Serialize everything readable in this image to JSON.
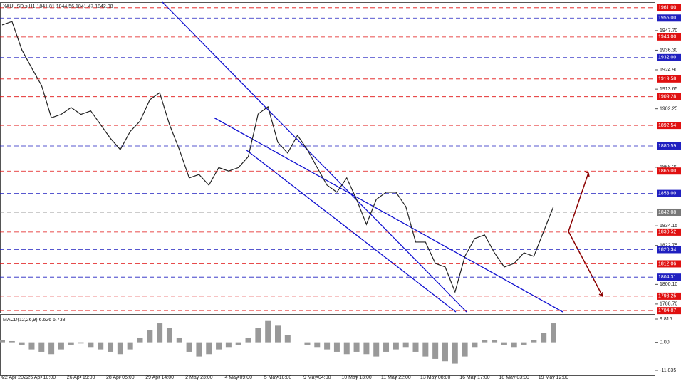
{
  "chart_data": [
    {
      "type": "line",
      "title": "XAUUSD.s,H1  1841.81 1844.56 1841.47 1842.08",
      "color": "#222222",
      "categories": [
        "22 Apr 2022",
        null,
        null,
        null,
        "25 Apr 10:00",
        null,
        null,
        null,
        "26 Apr 19:00",
        null,
        null,
        null,
        "28 Apr 05:00",
        null,
        null,
        null,
        "29 Apr 14:00",
        null,
        null,
        null,
        "2 May 23:00",
        null,
        null,
        null,
        "4 May 09:00",
        null,
        null,
        null,
        "5 May 18:00",
        null,
        null,
        null,
        "9 May 04:00",
        null,
        null,
        null,
        "10 May 13:00",
        null,
        null,
        null,
        "11 May 22:00",
        null,
        null,
        null,
        "13 May 08:00",
        null,
        null,
        null,
        "16 May 17:00",
        null,
        null,
        null,
        "18 May 03:00",
        null,
        null,
        null,
        "19 May 12:00"
      ],
      "values": [
        1951,
        1953,
        1936.5,
        1926,
        1915.8,
        1897,
        1899,
        1903,
        1899,
        1901,
        1893,
        1885,
        1878.5,
        1889,
        1895,
        1907.5,
        1911.6,
        1893,
        1878.5,
        1862,
        1864,
        1857.8,
        1868,
        1866,
        1868,
        1874.4,
        1899.2,
        1903.4,
        1882.7,
        1876.5,
        1886.8,
        1878.5,
        1868,
        1857.8,
        1853.7,
        1862,
        1849.5,
        1835,
        1849.5,
        1853.7,
        1853.7,
        1845.4,
        1824.7,
        1824.7,
        1812.3,
        1810.2,
        1795.7,
        1816.4,
        1826.8,
        1828.9,
        1818.5,
        1810.2,
        1812.3,
        1818.5,
        1816.4,
        1830.9,
        1845.4
      ],
      "ylim": [
        1784.1,
        1963.4
      ],
      "yticks": [
        {
          "value": 1947.7,
          "label": "1947.70"
        },
        {
          "value": 1936.3,
          "label": "1936.30"
        },
        {
          "value": 1924.9,
          "label": "1924.90"
        },
        {
          "value": 1913.65,
          "label": "1913.65"
        },
        {
          "value": 1902.25,
          "label": "1902.25"
        },
        {
          "value": 1868.2,
          "label": "1868.20"
        },
        {
          "value": 1834.15,
          "label": "1834.15"
        },
        {
          "value": 1822.75,
          "label": "1822.75"
        },
        {
          "value": 1800.1,
          "label": "1800.10"
        },
        {
          "value": 1788.7,
          "label": "1788.70"
        }
      ],
      "levels": [
        {
          "value": 1961,
          "label": "1961.00",
          "color": "#e01010"
        },
        {
          "value": 1955,
          "label": "1955.00",
          "color": "#2020c0"
        },
        {
          "value": 1944,
          "label": "1944.00",
          "color": "#e01010"
        },
        {
          "value": 1932,
          "label": "1932.00",
          "color": "#2020c0"
        },
        {
          "value": 1919.58,
          "label": "1919.58",
          "color": "#e01010"
        },
        {
          "value": 1909.28,
          "label": "1909.28",
          "color": "#e01010"
        },
        {
          "value": 1892.54,
          "label": "1892.54",
          "color": "#e01010"
        },
        {
          "value": 1880.59,
          "label": "1880.59",
          "color": "#2020c0"
        },
        {
          "value": 1866,
          "label": "1866.00",
          "color": "#e01010"
        },
        {
          "value": 1853,
          "label": "1853.00",
          "color": "#2020c0"
        },
        {
          "value": 1842.08,
          "label": "1842.08",
          "color": "#777777"
        },
        {
          "value": 1830.52,
          "label": "1830.52",
          "color": "#e01010"
        },
        {
          "value": 1820.34,
          "label": "1820.34",
          "color": "#2020c0"
        },
        {
          "value": 1812.06,
          "label": "1812.06",
          "color": "#e01010"
        },
        {
          "value": 1804.31,
          "label": "1804.31",
          "color": "#2020c0"
        },
        {
          "value": 1793.25,
          "label": "1793.25",
          "color": "#e01010"
        },
        {
          "value": 1784.87,
          "label": "1784.87",
          "color": "#e01010"
        }
      ]
    },
    {
      "type": "bar",
      "title": "MACD(12,26,9) 6.626 6.738",
      "color": "#999999",
      "values": [
        1,
        0.5,
        -1,
        -3,
        -4,
        -5,
        -3,
        -1,
        -0.5,
        -2,
        -3,
        -4,
        -5,
        -3,
        2,
        5,
        8,
        6,
        2,
        -4,
        -6,
        -5,
        -3,
        -2,
        -1,
        2,
        6,
        9,
        7,
        3,
        0,
        -1,
        -2,
        -3,
        -4,
        -5,
        -4,
        -5,
        -6,
        -4,
        -3,
        -2,
        -4,
        -6,
        -7,
        -8,
        -9,
        -6,
        -2,
        1,
        1,
        -1,
        -2,
        -1,
        1,
        4,
        8
      ],
      "ylim": [
        -11.835,
        9.816
      ],
      "yticks": [
        {
          "value": 9.816,
          "label": "9.816"
        },
        {
          "value": 0,
          "label": "0.00"
        },
        {
          "value": -11.835,
          "label": "-11.835"
        }
      ]
    }
  ]
}
